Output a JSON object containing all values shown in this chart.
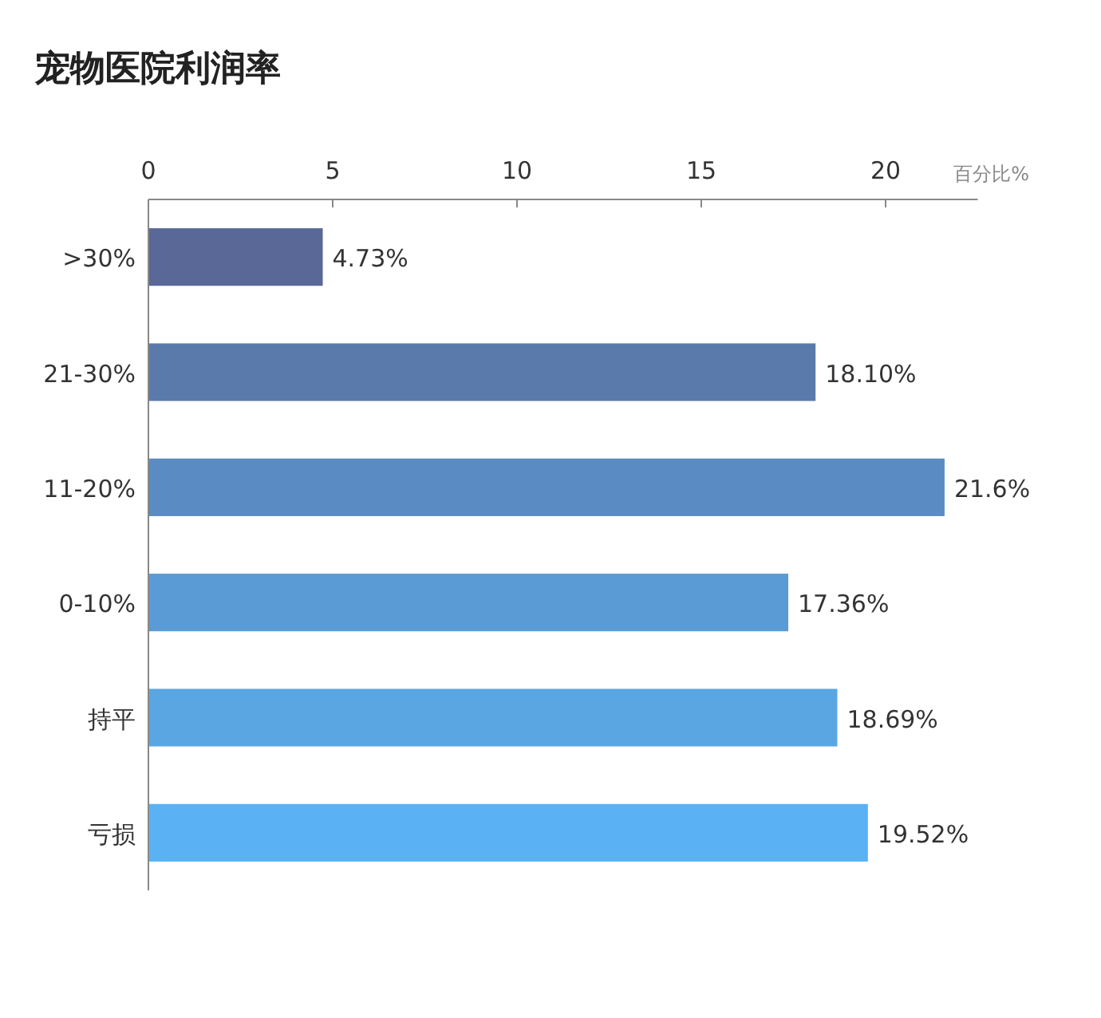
{
  "chart_data": {
    "type": "bar",
    "orientation": "horizontal",
    "title": "宠物医院利润率",
    "xlabel": "百分比%",
    "categories": [
      ">30%",
      "21-30%",
      "11-20%",
      "0-10%",
      "持平",
      "亏损"
    ],
    "values": [
      4.73,
      18.1,
      21.6,
      17.36,
      18.69,
      19.52
    ],
    "value_labels": [
      "4.73%",
      "18.10%",
      "21.6%",
      "17.36%",
      "18.69%",
      "19.52%"
    ],
    "colors": [
      "#5a6898",
      "#5a7aab",
      "#5a8bc3",
      "#5a9bd6",
      "#5aa6e3",
      "#5ab1f4"
    ],
    "xlim": [
      0,
      22.5
    ],
    "xticks": [
      0,
      5,
      10,
      15,
      20
    ]
  }
}
